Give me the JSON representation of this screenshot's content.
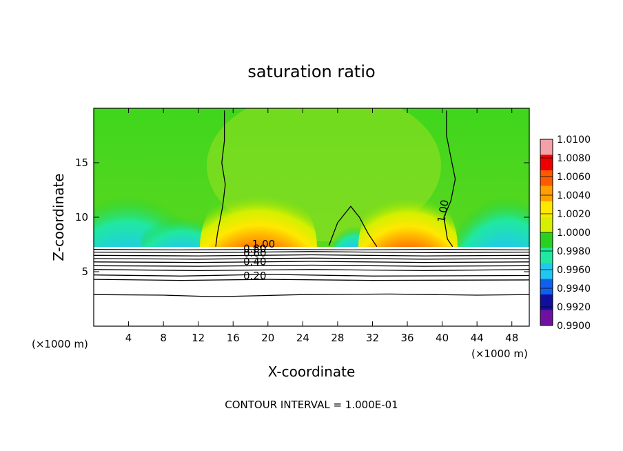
{
  "chart_data": {
    "type": "heatmap",
    "title": "saturation ratio",
    "xlabel": "X-coordinate",
    "ylabel": "Z-coordinate",
    "x_unit_left": "(×1000 m)",
    "x_unit_right": "(×1000 m)",
    "xlim": [
      0,
      50
    ],
    "ylim": [
      0,
      20
    ],
    "x_ticks": [
      4,
      8,
      12,
      16,
      20,
      24,
      28,
      32,
      36,
      40,
      44,
      48
    ],
    "x_tick_labels": [
      "4",
      "8",
      "12",
      "16",
      "20",
      "24",
      "28",
      "32",
      "36",
      "40",
      "44",
      "48"
    ],
    "y_ticks": [
      5,
      10,
      15
    ],
    "y_tick_labels": [
      "5",
      "10",
      "15"
    ],
    "footer": "CONTOUR INTERVAL = 1.000E-01",
    "colorbar": {
      "labels": [
        "1.0100",
        "1.0080",
        "1.0060",
        "1.0040",
        "1.0020",
        "1.0000",
        "0.9980",
        "0.9960",
        "0.9940",
        "0.9920",
        "0.9900"
      ],
      "levels": [
        1.01,
        1.008,
        1.006,
        1.004,
        1.002,
        1.0,
        0.998,
        0.996,
        0.994,
        0.992,
        0.99
      ],
      "colors": [
        "#f3a0a8",
        "#ee0000",
        "#ff5a00",
        "#ffa000",
        "#ffe800",
        "#d4f000",
        "#28d020",
        "#20e8a0",
        "#20c8f0",
        "#1060f0",
        "#1010a0",
        "#7010a0"
      ]
    },
    "contour_labels": [
      {
        "text": "1.00",
        "x": 40.5,
        "z": 10.5
      },
      {
        "text": "1.00",
        "x": 19.5,
        "z": 7.2
      },
      {
        "text": "0.80",
        "x": 18.5,
        "z": 6.8
      },
      {
        "text": "0.60",
        "x": 18.5,
        "z": 6.4
      },
      {
        "text": "0.40",
        "x": 18.5,
        "z": 5.6
      },
      {
        "text": "0.20",
        "x": 18.5,
        "z": 4.3
      }
    ],
    "contour_lines": [
      {
        "level": "1.00",
        "points": [
          [
            15.0,
            19.8
          ],
          [
            15.0,
            17.0
          ],
          [
            14.7,
            15.0
          ],
          [
            15.1,
            13.0
          ],
          [
            14.8,
            11.0
          ],
          [
            14.2,
            8.5
          ],
          [
            14.0,
            7.3
          ]
        ]
      },
      {
        "level": "1.00",
        "points": [
          [
            40.5,
            19.8
          ],
          [
            40.5,
            17.5
          ],
          [
            41.0,
            15.5
          ],
          [
            41.5,
            13.5
          ],
          [
            41.0,
            11.5
          ],
          [
            40.2,
            10.0
          ],
          [
            40.6,
            8.0
          ],
          [
            41.2,
            7.3
          ]
        ]
      },
      {
        "level": "1.00",
        "points": [
          [
            27.0,
            7.4
          ],
          [
            28.0,
            9.5
          ],
          [
            29.5,
            11.0
          ],
          [
            30.5,
            10.0
          ],
          [
            31.5,
            8.5
          ],
          [
            32.5,
            7.3
          ]
        ]
      },
      {
        "level": "1.00",
        "points": [
          [
            0,
            7.05
          ],
          [
            10,
            7.0
          ],
          [
            20,
            7.05
          ],
          [
            30,
            7.0
          ],
          [
            40,
            7.05
          ],
          [
            50,
            7.0
          ]
        ]
      },
      {
        "level": "0.90",
        "points": [
          [
            0,
            6.8
          ],
          [
            12,
            6.75
          ],
          [
            25,
            6.85
          ],
          [
            38,
            6.75
          ],
          [
            50,
            6.8
          ]
        ]
      },
      {
        "level": "0.80",
        "points": [
          [
            0,
            6.5
          ],
          [
            12,
            6.45
          ],
          [
            25,
            6.55
          ],
          [
            38,
            6.45
          ],
          [
            50,
            6.5
          ]
        ]
      },
      {
        "level": "0.70",
        "points": [
          [
            0,
            6.2
          ],
          [
            12,
            6.15
          ],
          [
            25,
            6.25
          ],
          [
            38,
            6.15
          ],
          [
            50,
            6.2
          ]
        ]
      },
      {
        "level": "0.60",
        "points": [
          [
            0,
            5.9
          ],
          [
            12,
            5.85
          ],
          [
            25,
            5.95
          ],
          [
            38,
            5.85
          ],
          [
            50,
            5.9
          ]
        ]
      },
      {
        "level": "0.50",
        "points": [
          [
            0,
            5.55
          ],
          [
            12,
            5.5
          ],
          [
            25,
            5.6
          ],
          [
            38,
            5.5
          ],
          [
            50,
            5.55
          ]
        ]
      },
      {
        "level": "0.40",
        "points": [
          [
            0,
            5.2
          ],
          [
            12,
            5.1
          ],
          [
            25,
            5.2
          ],
          [
            38,
            5.1
          ],
          [
            50,
            5.2
          ]
        ]
      },
      {
        "level": "0.30",
        "points": [
          [
            0,
            4.7
          ],
          [
            10,
            4.6
          ],
          [
            20,
            4.75
          ],
          [
            32,
            4.6
          ],
          [
            50,
            4.65
          ]
        ]
      },
      {
        "level": "0.20",
        "points": [
          [
            0,
            4.3
          ],
          [
            10,
            4.2
          ],
          [
            20,
            4.3
          ],
          [
            32,
            4.2
          ],
          [
            50,
            4.25
          ]
        ]
      },
      {
        "level": "0.10",
        "points": [
          [
            0,
            2.9
          ],
          [
            8,
            2.85
          ],
          [
            14,
            2.7
          ],
          [
            24,
            2.9
          ],
          [
            34,
            2.95
          ],
          [
            44,
            2.85
          ],
          [
            50,
            2.9
          ]
        ]
      }
    ],
    "field_notes": "green ~1.0000 aloft; cyan/blue pockets near x 0-12 and 42-50 at z 7.5-11; red/orange dome near x 15-23 and 33-39 just above z 7.3; white (below range) from z 7.3 down"
  }
}
